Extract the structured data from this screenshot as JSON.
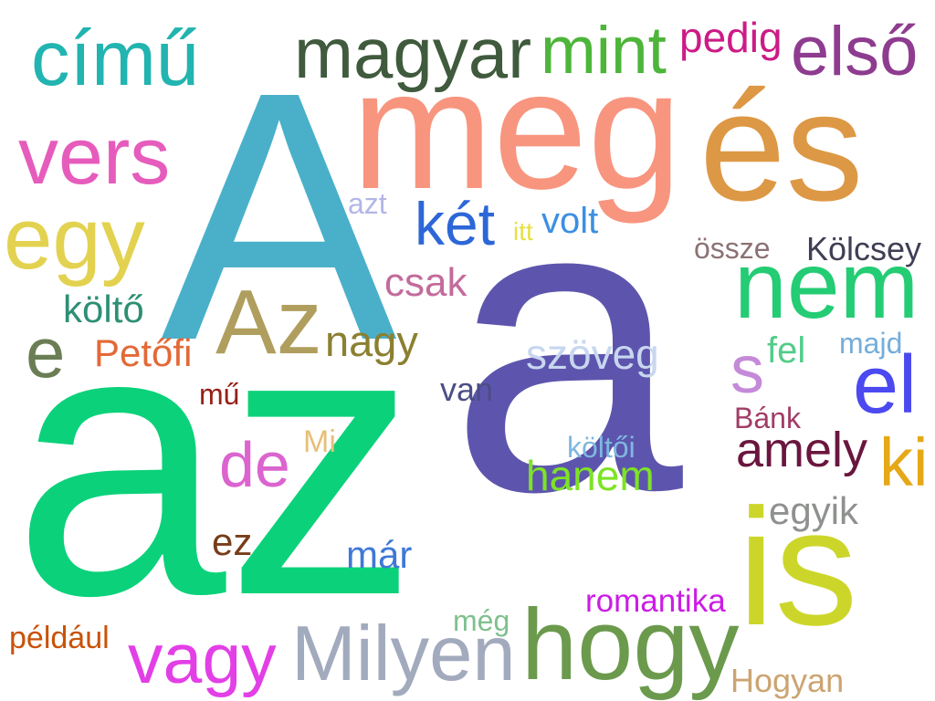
{
  "words": [
    {
      "text": "a",
      "color": "#5d55ad"
    },
    {
      "text": "az",
      "color": "#0bd27a"
    },
    {
      "text": "A",
      "color": "#4ab0ca"
    },
    {
      "text": "meg",
      "color": "#f8957e"
    },
    {
      "text": "és",
      "color": "#dd9845"
    },
    {
      "text": "is",
      "color": "#ccd62a"
    },
    {
      "text": "hogy",
      "color": "#6b9a4d"
    },
    {
      "text": "nem",
      "color": "#24cc74"
    },
    {
      "text": "Az",
      "color": "#b09e5e"
    },
    {
      "text": "egy",
      "color": "#e3d250"
    },
    {
      "text": "vers",
      "color": "#e65cbc"
    },
    {
      "text": "magyar",
      "color": "#3f5a3c"
    },
    {
      "text": "című",
      "color": "#22b4b0"
    },
    {
      "text": "mint",
      "color": "#4db53a"
    },
    {
      "text": "első",
      "color": "#8e3c8f"
    },
    {
      "text": "Milyen",
      "color": "#a2aabd"
    },
    {
      "text": "vagy",
      "color": "#e23fe6"
    },
    {
      "text": "el",
      "color": "#4b49ef"
    },
    {
      "text": "két",
      "color": "#2d67d7"
    },
    {
      "text": "de",
      "color": "#db64cf"
    },
    {
      "text": "amely",
      "color": "#6a163e"
    },
    {
      "text": "pedig",
      "color": "#cc1b86"
    },
    {
      "text": "ki",
      "color": "#e5a817"
    },
    {
      "text": "hanem",
      "color": "#7ee326"
    },
    {
      "text": "s",
      "color": "#c48ad8"
    },
    {
      "text": "nagy",
      "color": "#8b8031"
    },
    {
      "text": "szöveg",
      "color": "#c8d7ef"
    },
    {
      "text": "e",
      "color": "#6a7d54"
    },
    {
      "text": "Petőfi",
      "color": "#e36937"
    },
    {
      "text": "csak",
      "color": "#c36b9c"
    },
    {
      "text": "költő",
      "color": "#2e8f74"
    },
    {
      "text": "Kölcsey",
      "color": "#3f3f55"
    },
    {
      "text": "volt",
      "color": "#3c8fe2"
    },
    {
      "text": "fel",
      "color": "#53cc89"
    },
    {
      "text": "egyik",
      "color": "#8e918e"
    },
    {
      "text": "romantika",
      "color": "#cb1ce5"
    },
    {
      "text": "Hogyan",
      "color": "#cca471"
    },
    {
      "text": "már",
      "color": "#3f79d6"
    },
    {
      "text": "ez",
      "color": "#773d19"
    },
    {
      "text": "például",
      "color": "#c9520a"
    },
    {
      "text": "össze",
      "color": "#8c7274"
    },
    {
      "text": "Bánk",
      "color": "#a23c66"
    },
    {
      "text": "majd",
      "color": "#74aedb"
    },
    {
      "text": "van",
      "color": "#4b4e86"
    },
    {
      "text": "mű",
      "color": "#952118"
    },
    {
      "text": "költői",
      "color": "#7eb8e0"
    },
    {
      "text": "Mi",
      "color": "#e6c07a"
    },
    {
      "text": "azt",
      "color": "#b3b6e6"
    },
    {
      "text": "itt",
      "color": "#e6e045"
    },
    {
      "text": "még",
      "color": "#7fc08d"
    }
  ]
}
